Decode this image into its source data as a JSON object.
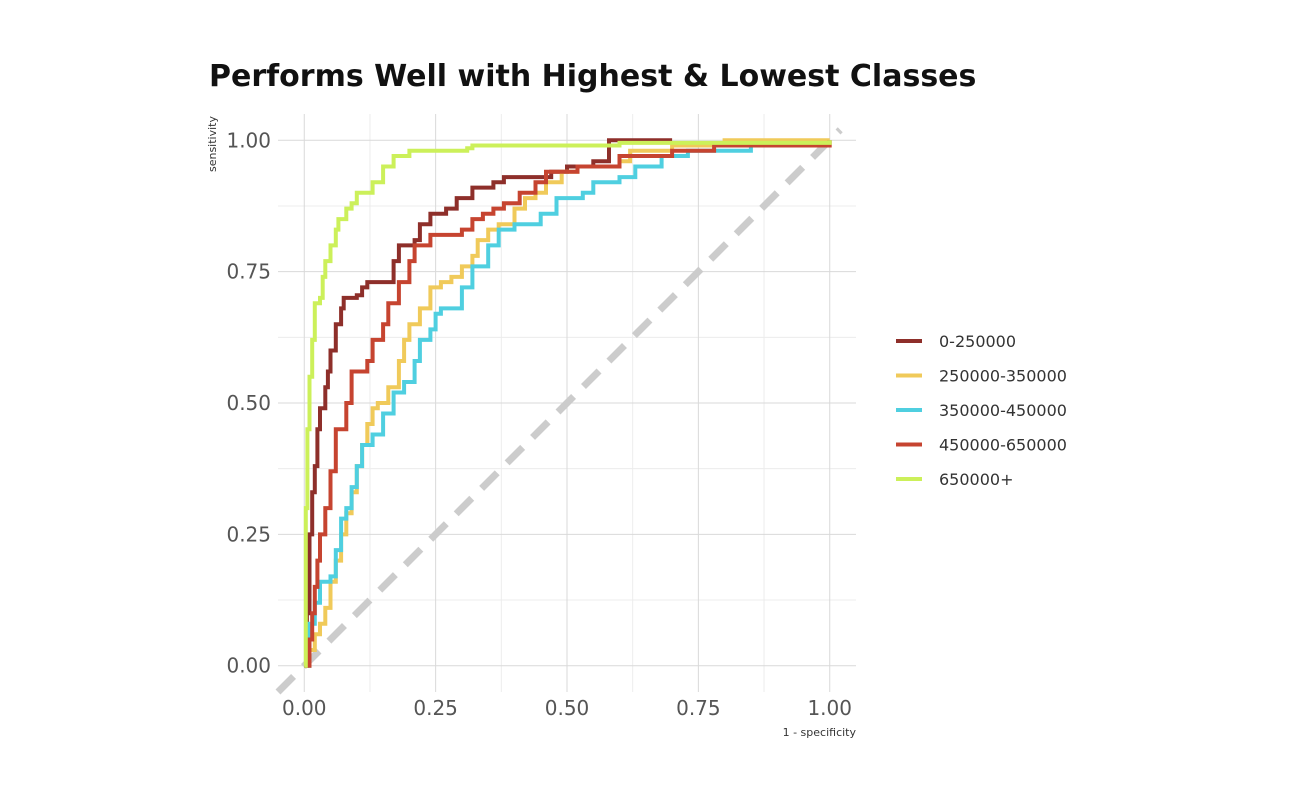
{
  "chart_data": {
    "type": "line",
    "title": "Performs Well with Highest & Lowest Classes",
    "xlabel": "1 - specificity",
    "ylabel": "sensitivity",
    "xlim": [
      -0.05,
      1.05
    ],
    "ylim": [
      -0.05,
      1.05
    ],
    "x_ticks": [
      0,
      0.25,
      0.5,
      0.75,
      1
    ],
    "x_tick_labels": [
      "0.00",
      "0.25",
      "0.50",
      "0.75",
      "1.00"
    ],
    "y_ticks": [
      0,
      0.25,
      0.5,
      0.75,
      1
    ],
    "y_tick_labels": [
      "0.00",
      "0.25",
      "0.50",
      "0.75",
      "1.00"
    ],
    "grid": true,
    "legend_position": "right",
    "reference_line": {
      "from": [
        -0.05,
        -0.05
      ],
      "to": [
        1.02,
        1.02
      ],
      "color": "#cccccc",
      "style": "dashed"
    },
    "series": [
      {
        "name": "0-250000",
        "color": "#8e2f2a",
        "points": [
          [
            0,
            0
          ],
          [
            0.005,
            0.1
          ],
          [
            0.01,
            0.25
          ],
          [
            0.015,
            0.33
          ],
          [
            0.02,
            0.38
          ],
          [
            0.025,
            0.45
          ],
          [
            0.03,
            0.49
          ],
          [
            0.04,
            0.53
          ],
          [
            0.045,
            0.56
          ],
          [
            0.05,
            0.6
          ],
          [
            0.06,
            0.65
          ],
          [
            0.07,
            0.68
          ],
          [
            0.075,
            0.7
          ],
          [
            0.1,
            0.705
          ],
          [
            0.11,
            0.72
          ],
          [
            0.12,
            0.73
          ],
          [
            0.16,
            0.73
          ],
          [
            0.17,
            0.77
          ],
          [
            0.18,
            0.78
          ],
          [
            0.18,
            0.8
          ],
          [
            0.21,
            0.81
          ],
          [
            0.22,
            0.84
          ],
          [
            0.24,
            0.86
          ],
          [
            0.27,
            0.87
          ],
          [
            0.29,
            0.89
          ],
          [
            0.32,
            0.91
          ],
          [
            0.36,
            0.92
          ],
          [
            0.38,
            0.93
          ],
          [
            0.45,
            0.93
          ],
          [
            0.47,
            0.94
          ],
          [
            0.5,
            0.95
          ],
          [
            0.55,
            0.96
          ],
          [
            0.58,
            0.97
          ],
          [
            0.58,
            1
          ],
          [
            0.7,
            1
          ]
        ]
      },
      {
        "name": "250000-350000",
        "color": "#f0ca5a",
        "points": [
          [
            0,
            0
          ],
          [
            0.01,
            0.03
          ],
          [
            0.02,
            0.06
          ],
          [
            0.03,
            0.08
          ],
          [
            0.04,
            0.11
          ],
          [
            0.05,
            0.16
          ],
          [
            0.06,
            0.2
          ],
          [
            0.07,
            0.25
          ],
          [
            0.08,
            0.29
          ],
          [
            0.09,
            0.33
          ],
          [
            0.1,
            0.38
          ],
          [
            0.11,
            0.42
          ],
          [
            0.12,
            0.46
          ],
          [
            0.13,
            0.49
          ],
          [
            0.14,
            0.5
          ],
          [
            0.16,
            0.53
          ],
          [
            0.18,
            0.58
          ],
          [
            0.19,
            0.62
          ],
          [
            0.2,
            0.65
          ],
          [
            0.22,
            0.68
          ],
          [
            0.24,
            0.72
          ],
          [
            0.26,
            0.73
          ],
          [
            0.28,
            0.74
          ],
          [
            0.3,
            0.76
          ],
          [
            0.32,
            0.78
          ],
          [
            0.33,
            0.81
          ],
          [
            0.35,
            0.83
          ],
          [
            0.37,
            0.84
          ],
          [
            0.4,
            0.87
          ],
          [
            0.42,
            0.89
          ],
          [
            0.44,
            0.9
          ],
          [
            0.46,
            0.92
          ],
          [
            0.49,
            0.94
          ],
          [
            0.52,
            0.95
          ],
          [
            0.6,
            0.96
          ],
          [
            0.62,
            0.98
          ],
          [
            0.7,
            0.99
          ],
          [
            0.8,
            1
          ],
          [
            1,
            1
          ]
        ]
      },
      {
        "name": "350000-450000",
        "color": "#4fcfe0",
        "points": [
          [
            0,
            0
          ],
          [
            0.01,
            0.08
          ],
          [
            0.02,
            0.12
          ],
          [
            0.03,
            0.16
          ],
          [
            0.05,
            0.17
          ],
          [
            0.06,
            0.22
          ],
          [
            0.07,
            0.28
          ],
          [
            0.08,
            0.3
          ],
          [
            0.09,
            0.34
          ],
          [
            0.1,
            0.38
          ],
          [
            0.11,
            0.42
          ],
          [
            0.13,
            0.44
          ],
          [
            0.15,
            0.48
          ],
          [
            0.17,
            0.52
          ],
          [
            0.19,
            0.54
          ],
          [
            0.21,
            0.58
          ],
          [
            0.22,
            0.62
          ],
          [
            0.24,
            0.64
          ],
          [
            0.25,
            0.67
          ],
          [
            0.26,
            0.68
          ],
          [
            0.3,
            0.72
          ],
          [
            0.32,
            0.76
          ],
          [
            0.35,
            0.8
          ],
          [
            0.37,
            0.83
          ],
          [
            0.4,
            0.84
          ],
          [
            0.45,
            0.86
          ],
          [
            0.48,
            0.89
          ],
          [
            0.53,
            0.9
          ],
          [
            0.55,
            0.92
          ],
          [
            0.6,
            0.93
          ],
          [
            0.63,
            0.95
          ],
          [
            0.68,
            0.97
          ],
          [
            0.73,
            0.98
          ],
          [
            0.85,
            0.99
          ],
          [
            0.96,
            0.99
          ]
        ]
      },
      {
        "name": "450000-650000",
        "color": "#c64430",
        "points": [
          [
            0,
            0
          ],
          [
            0.01,
            0.05
          ],
          [
            0.015,
            0.1
          ],
          [
            0.02,
            0.15
          ],
          [
            0.025,
            0.2
          ],
          [
            0.03,
            0.25
          ],
          [
            0.04,
            0.3
          ],
          [
            0.05,
            0.37
          ],
          [
            0.06,
            0.45
          ],
          [
            0.08,
            0.5
          ],
          [
            0.09,
            0.56
          ],
          [
            0.12,
            0.58
          ],
          [
            0.13,
            0.62
          ],
          [
            0.15,
            0.65
          ],
          [
            0.16,
            0.69
          ],
          [
            0.18,
            0.73
          ],
          [
            0.2,
            0.77
          ],
          [
            0.21,
            0.8
          ],
          [
            0.24,
            0.82
          ],
          [
            0.3,
            0.83
          ],
          [
            0.32,
            0.85
          ],
          [
            0.34,
            0.86
          ],
          [
            0.36,
            0.87
          ],
          [
            0.38,
            0.88
          ],
          [
            0.41,
            0.9
          ],
          [
            0.44,
            0.92
          ],
          [
            0.46,
            0.94
          ],
          [
            0.52,
            0.95
          ],
          [
            0.6,
            0.97
          ],
          [
            0.7,
            0.98
          ],
          [
            0.78,
            0.99
          ],
          [
            1,
            1
          ]
        ]
      },
      {
        "name": "650000+",
        "color": "#ccf05a",
        "points": [
          [
            0,
            0
          ],
          [
            0.003,
            0.3
          ],
          [
            0.006,
            0.45
          ],
          [
            0.01,
            0.55
          ],
          [
            0.015,
            0.62
          ],
          [
            0.02,
            0.69
          ],
          [
            0.03,
            0.7
          ],
          [
            0.035,
            0.74
          ],
          [
            0.04,
            0.77
          ],
          [
            0.05,
            0.8
          ],
          [
            0.06,
            0.83
          ],
          [
            0.065,
            0.85
          ],
          [
            0.08,
            0.87
          ],
          [
            0.09,
            0.88
          ],
          [
            0.1,
            0.9
          ],
          [
            0.13,
            0.92
          ],
          [
            0.15,
            0.95
          ],
          [
            0.17,
            0.97
          ],
          [
            0.2,
            0.98
          ],
          [
            0.31,
            0.985
          ],
          [
            0.32,
            0.99
          ],
          [
            0.6,
            0.995
          ],
          [
            1,
            1
          ]
        ]
      }
    ]
  }
}
